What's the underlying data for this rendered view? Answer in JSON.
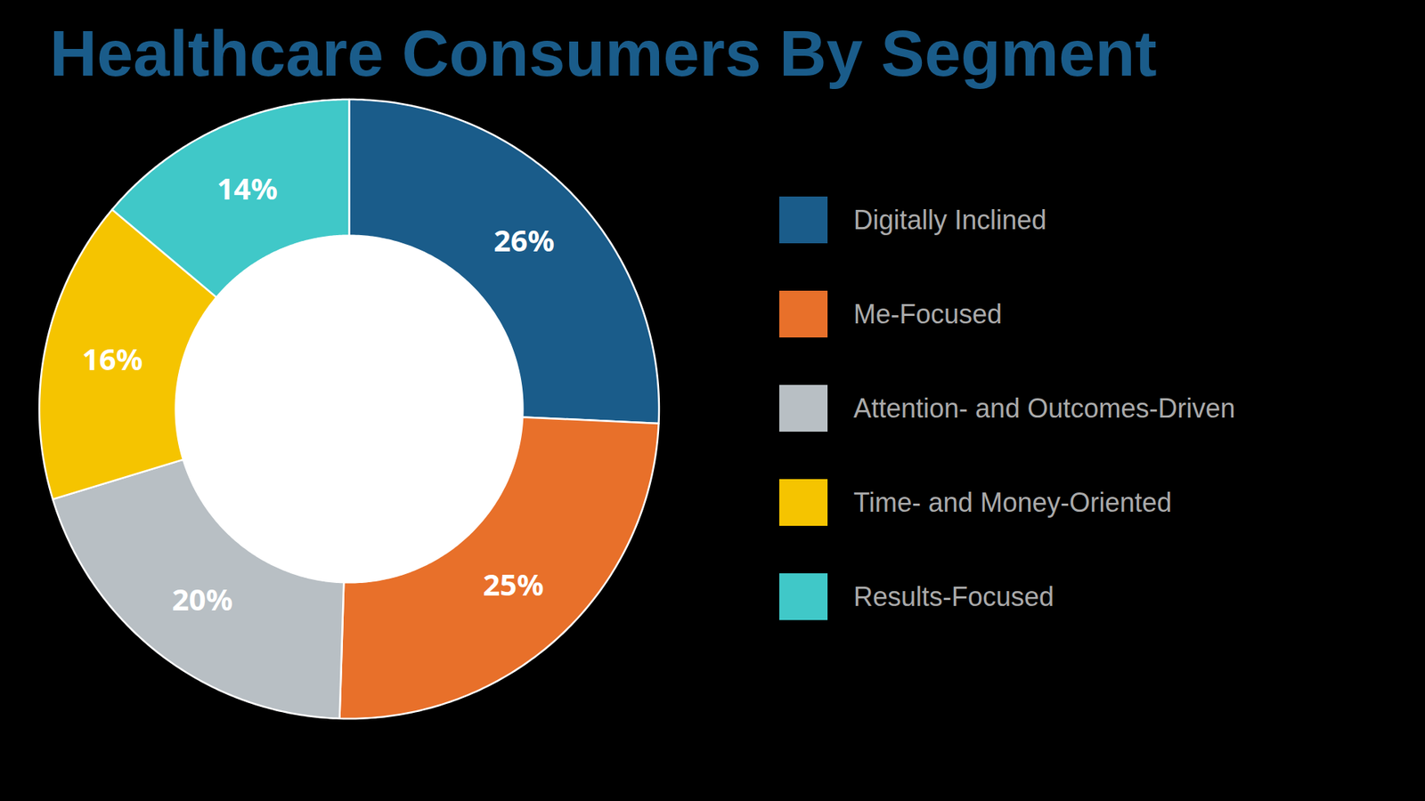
{
  "chart_data": {
    "type": "pie",
    "title": "Healthcare Consumers By Segment",
    "categories": [
      "Digitally Inclined",
      "Me-Focused",
      "Attention- and Outcomes-Driven",
      "Time- and Money-Oriented",
      "Results-Focused"
    ],
    "values": [
      26,
      25,
      20,
      16,
      14
    ],
    "value_labels": [
      "26%",
      "25%",
      "20%",
      "16%",
      "14%"
    ],
    "colors": [
      "#1a5c8a",
      "#e8702a",
      "#b8bfc4",
      "#f5c400",
      "#40c8c8"
    ],
    "data_labels": true,
    "legend": "right"
  }
}
